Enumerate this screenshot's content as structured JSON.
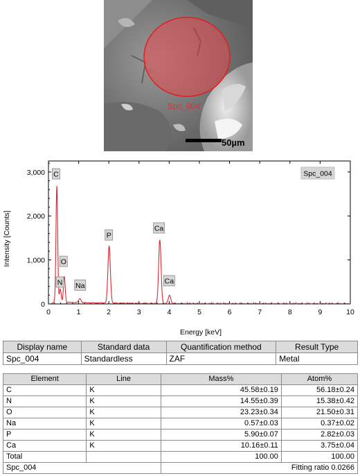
{
  "image": {
    "spot_label": "Spc_004",
    "scale_bar_label": "50µm"
  },
  "chart_data": {
    "type": "line",
    "legend_label": "Spc_004",
    "xlabel": "Energy [keV]",
    "ylabel": "Intensity [Counts]",
    "xlim": [
      0,
      10
    ],
    "ylim": [
      0,
      3250
    ],
    "x_ticks": [
      0,
      1,
      2,
      3,
      4,
      5,
      6,
      7,
      8,
      9,
      10
    ],
    "y_ticks": [
      0,
      1000,
      2000,
      3000
    ],
    "y_tick_labels": [
      "0",
      "1,000",
      "2,000",
      "3,000"
    ],
    "grid": false,
    "series_color": "#d9282f",
    "peaks": [
      {
        "label": "C",
        "energy": 0.277,
        "counts": 2680
      },
      {
        "label": "N",
        "energy": 0.392,
        "counts": 330
      },
      {
        "label": "O",
        "energy": 0.525,
        "counts": 620
      },
      {
        "label": "Na",
        "energy": 1.04,
        "counts": 120
      },
      {
        "label": "P",
        "energy": 2.01,
        "counts": 1330
      },
      {
        "label": "Ca",
        "energy": 3.69,
        "counts": 1470
      },
      {
        "label": "Ca",
        "energy": 4.01,
        "counts": 220
      }
    ],
    "peak_label_positions": [
      {
        "label": "C",
        "energy": 0.25,
        "counts": 2950
      },
      {
        "label": "N",
        "energy": 0.38,
        "counts": 490
      },
      {
        "label": "O",
        "energy": 0.5,
        "counts": 960
      },
      {
        "label": "Na",
        "energy": 1.05,
        "counts": 420
      },
      {
        "label": "P",
        "energy": 2.0,
        "counts": 1560
      },
      {
        "label": "Ca",
        "energy": 3.66,
        "counts": 1720
      },
      {
        "label": "Ca",
        "energy": 4.0,
        "counts": 520
      }
    ]
  },
  "summary_table": {
    "headers": [
      "Display name",
      "Standard data",
      "Quantification method",
      "Result Type"
    ],
    "row": [
      "Spc_004",
      "Standardless",
      "ZAF",
      "Metal"
    ]
  },
  "element_table": {
    "headers": [
      "Element",
      "Line",
      "Mass%",
      "Atom%"
    ],
    "rows": [
      [
        "C",
        "K",
        "45.58±0.19",
        "56.18±0.24"
      ],
      [
        "N",
        "K",
        "14.55±0.39",
        "15.38±0.42"
      ],
      [
        "O",
        "K",
        "23.23±0.34",
        "21.50±0.31"
      ],
      [
        "Na",
        "K",
        "0.57±0.03",
        "0.37±0.02"
      ],
      [
        "P",
        "K",
        "5.90±0.07",
        "2.82±0.03"
      ],
      [
        "Ca",
        "K",
        "10.16±0.11",
        "3.75±0.04"
      ]
    ],
    "total_label": "Total",
    "total_mass": "100.00",
    "total_atom": "100.00",
    "footer_left": "Spc_004",
    "footer_right": "Fitting ratio 0.0266"
  }
}
